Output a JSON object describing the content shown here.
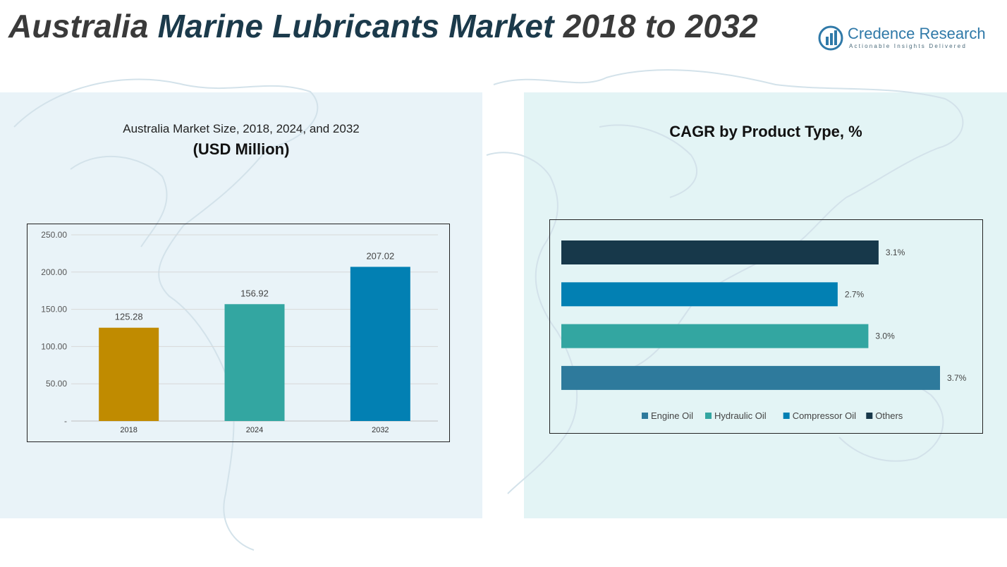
{
  "header": {
    "title_part1": "Australia",
    "title_part2": "Marine Lubricants Market",
    "title_part3": "2018 to 2032",
    "logo_name": "Credence Research",
    "logo_tagline": "Actionable Insights Delivered"
  },
  "colors": {
    "bar_2018": "#c08b00",
    "bar_2024": "#33a6a1",
    "bar_2032": "#0280b3",
    "others": "#17384a",
    "compressor_oil": "#0280b3",
    "hydraulic_oil": "#33a6a1",
    "engine_oil": "#2e7a9c"
  },
  "chart_data": [
    {
      "type": "bar",
      "title": "Australia Market Size, 2018, 2024, and 2032",
      "subtitle": "(USD Million)",
      "categories": [
        "2018",
        "2024",
        "2032"
      ],
      "values": [
        125.28,
        156.92,
        207.02
      ],
      "value_labels": [
        "125.28",
        "156.92",
        "207.02"
      ],
      "ylim": [
        0,
        250
      ],
      "yticks": [
        0,
        50,
        100,
        150,
        200,
        250
      ],
      "ytick_labels": [
        "-",
        "50.00",
        "100.00",
        "150.00",
        "200.00",
        "250.00"
      ],
      "grid": true
    },
    {
      "type": "bar",
      "orientation": "horizontal",
      "title": "CAGR by Product Type, %",
      "categories": [
        "Others",
        "Compressor Oil",
        "Hydraulic Oil",
        "Engine Oil"
      ],
      "values": [
        3.1,
        2.7,
        3.0,
        3.7
      ],
      "value_labels": [
        "3.1%",
        "2.7%",
        "3.0%",
        "3.7%"
      ],
      "legend": [
        "Engine Oil",
        "Hydraulic Oil",
        "Compressor Oil",
        "Others"
      ],
      "legend_position": "bottom",
      "xlim": [
        0,
        3.7
      ],
      "grid": false
    }
  ]
}
